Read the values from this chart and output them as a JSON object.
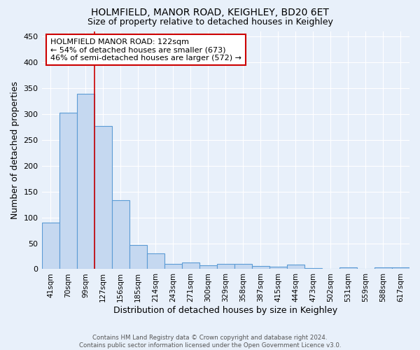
{
  "title1": "HOLMFIELD, MANOR ROAD, KEIGHLEY, BD20 6ET",
  "title2": "Size of property relative to detached houses in Keighley",
  "xlabel": "Distribution of detached houses by size in Keighley",
  "ylabel": "Number of detached properties",
  "footnote": "Contains HM Land Registry data © Crown copyright and database right 2024.\nContains public sector information licensed under the Open Government Licence v3.0.",
  "categories": [
    "41sqm",
    "70sqm",
    "99sqm",
    "127sqm",
    "156sqm",
    "185sqm",
    "214sqm",
    "243sqm",
    "271sqm",
    "300sqm",
    "329sqm",
    "358sqm",
    "387sqm",
    "415sqm",
    "444sqm",
    "473sqm",
    "502sqm",
    "531sqm",
    "559sqm",
    "588sqm",
    "617sqm"
  ],
  "values": [
    90,
    303,
    340,
    277,
    133,
    47,
    31,
    10,
    13,
    8,
    10,
    10,
    6,
    5,
    9,
    2,
    1,
    4,
    1,
    4,
    4
  ],
  "bar_color": "#c5d8f0",
  "bar_edge_color": "#5b9bd5",
  "bg_color": "#e8f0fa",
  "grid_color": "#ffffff",
  "vline_color": "#cc0000",
  "annotation_text": "HOLMFIELD MANOR ROAD: 122sqm\n← 54% of detached houses are smaller (673)\n46% of semi-detached houses are larger (572) →",
  "ylim": [
    0,
    460
  ],
  "yticks": [
    0,
    50,
    100,
    150,
    200,
    250,
    300,
    350,
    400,
    450
  ]
}
